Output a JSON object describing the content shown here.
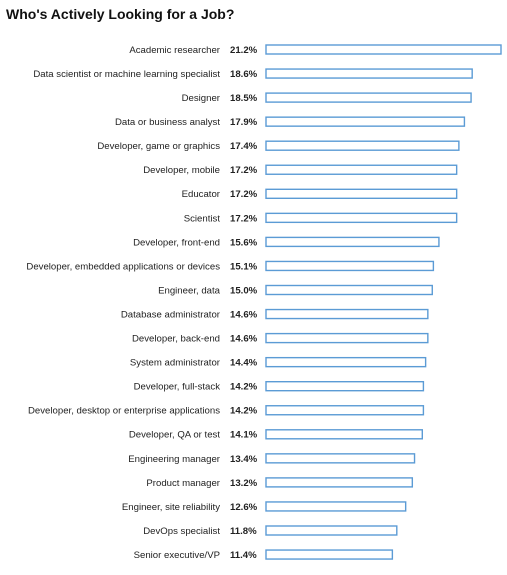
{
  "chart_data": {
    "type": "bar",
    "orientation": "horizontal",
    "title": "Who's Actively Looking for a Job?",
    "categories": [
      "Academic researcher",
      "Data scientist or machine learning specialist",
      "Designer",
      "Data or business analyst",
      "Developer, game or graphics",
      "Developer, mobile",
      "Educator",
      "Scientist",
      "Developer, front-end",
      "Developer, embedded applications or devices",
      "Engineer, data",
      "Database administrator",
      "Developer, back-end",
      "System administrator",
      "Developer, full-stack",
      "Developer, desktop or enterprise applications",
      "Developer, QA or test",
      "Engineering manager",
      "Product manager",
      "Engineer, site reliability",
      "DevOps specialist",
      "Senior executive/VP"
    ],
    "values": [
      21.2,
      18.6,
      18.5,
      17.9,
      17.4,
      17.2,
      17.2,
      17.2,
      15.6,
      15.1,
      15.0,
      14.6,
      14.6,
      14.4,
      14.2,
      14.2,
      14.1,
      13.4,
      13.2,
      12.6,
      11.8,
      11.4
    ],
    "value_labels": [
      "21.2%",
      "18.6%",
      "18.5%",
      "17.9%",
      "17.4%",
      "17.2%",
      "17.2%",
      "17.2%",
      "15.6%",
      "15.1%",
      "15.0%",
      "14.6%",
      "14.6%",
      "14.4%",
      "14.2%",
      "14.2%",
      "14.1%",
      "13.4%",
      "13.2%",
      "12.6%",
      "11.8%",
      "11.4%"
    ],
    "xlim": [
      0,
      21.2
    ],
    "grid": false,
    "legend": "none",
    "bar_color": "#5b9bd5"
  }
}
